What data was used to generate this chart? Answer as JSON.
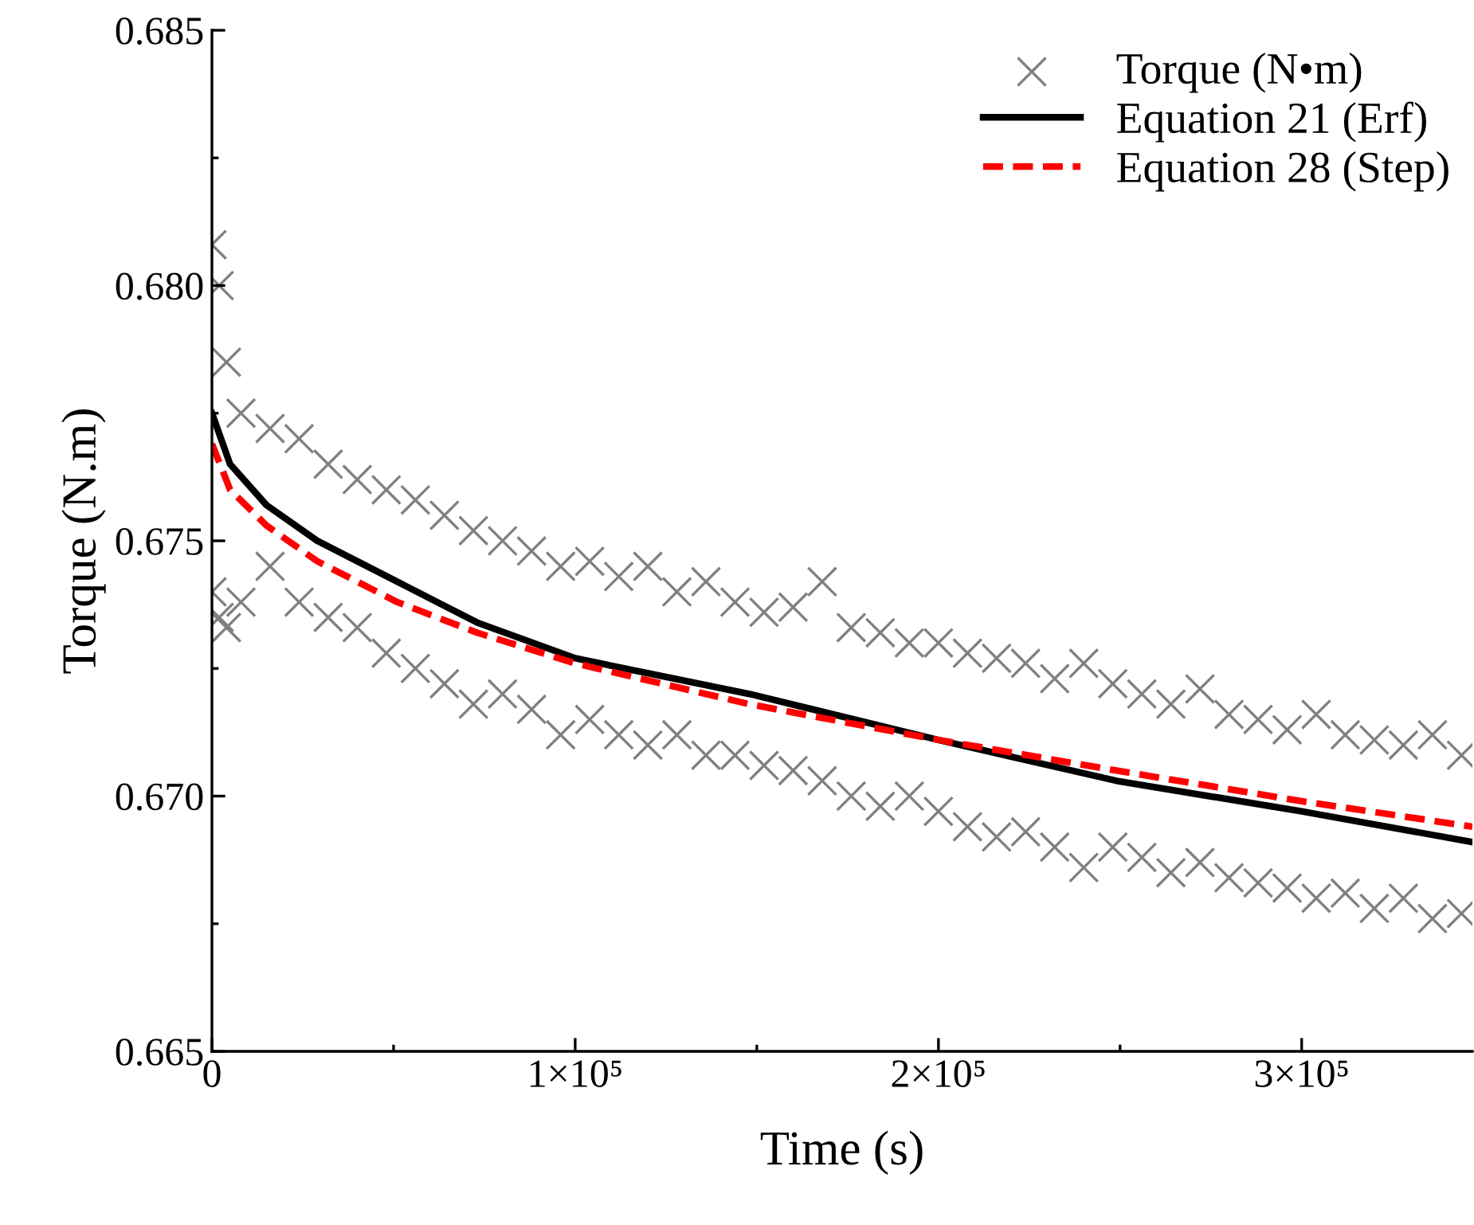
{
  "chart_data": {
    "type": "scatter",
    "xlabel": "Time (s)",
    "ylabel": "Torque (N.m)",
    "xlim": [
      0,
      347000
    ],
    "ylim": [
      0.665,
      0.685
    ],
    "xticks": [
      0,
      {
        "value": 100000,
        "label": "1×10⁵"
      },
      {
        "value": 200000,
        "label": "2×10⁵"
      },
      {
        "value": 300000,
        "label": "3×10⁵"
      }
    ],
    "yticks": [
      0.665,
      {
        "value": 0.67,
        "label": "0.670"
      },
      0.675,
      {
        "value": 0.68,
        "label": "0.680"
      },
      0.685
    ],
    "grid": false,
    "legend": "top right",
    "series": [
      {
        "name": "Torque (N•m)",
        "marker": "cross",
        "color": "#808080",
        "x": [
          0,
          0,
          2000,
          2000,
          4000,
          4000,
          8000,
          8000,
          16000,
          16000,
          24000,
          24000,
          32000,
          32000,
          40000,
          40000,
          48000,
          48000,
          56000,
          56000,
          64000,
          64000,
          72000,
          72000,
          80000,
          80000,
          88000,
          88000,
          96000,
          96000,
          104000,
          104000,
          112000,
          112000,
          120000,
          120000,
          128000,
          128000,
          136000,
          136000,
          144000,
          144000,
          152000,
          152000,
          160000,
          160000,
          168000,
          168000,
          176000,
          176000,
          184000,
          184000,
          192000,
          192000,
          200000,
          200000,
          208000,
          208000,
          216000,
          216000,
          224000,
          224000,
          232000,
          232000,
          240000,
          240000,
          248000,
          248000,
          256000,
          256000,
          264000,
          264000,
          272000,
          272000,
          280000,
          280000,
          288000,
          288000,
          296000,
          296000,
          304000,
          304000,
          312000,
          312000,
          320000,
          320000,
          328000,
          328000,
          336000,
          336000,
          344000,
          344000
        ],
        "values": [
          0.6808,
          0.674,
          0.68,
          0.6735,
          0.6785,
          0.6733,
          0.6775,
          0.6738,
          0.6772,
          0.6745,
          0.677,
          0.6738,
          0.6765,
          0.6735,
          0.6762,
          0.6733,
          0.676,
          0.6728,
          0.6758,
          0.6725,
          0.6755,
          0.6722,
          0.6752,
          0.6718,
          0.675,
          0.672,
          0.6748,
          0.6717,
          0.6745,
          0.6712,
          0.6746,
          0.6715,
          0.6743,
          0.6712,
          0.6745,
          0.671,
          0.674,
          0.6712,
          0.6742,
          0.6708,
          0.6738,
          0.6708,
          0.6736,
          0.6706,
          0.6737,
          0.6705,
          0.6742,
          0.6703,
          0.6733,
          0.67,
          0.6732,
          0.6698,
          0.673,
          0.67,
          0.673,
          0.6697,
          0.6728,
          0.6694,
          0.6727,
          0.6692,
          0.6726,
          0.6693,
          0.6723,
          0.669,
          0.6726,
          0.6686,
          0.6722,
          0.669,
          0.672,
          0.6688,
          0.6718,
          0.6685,
          0.6721,
          0.6687,
          0.6716,
          0.6684,
          0.6715,
          0.6683,
          0.6713,
          0.6682,
          0.6716,
          0.668,
          0.6712,
          0.6681,
          0.6711,
          0.6678,
          0.671,
          0.668,
          0.6712,
          0.6676,
          0.6708,
          0.6677
        ]
      },
      {
        "name": "Equation 21 (Erf)",
        "type": "line",
        "marker": "none",
        "line_style": "solid",
        "color": "#000000",
        "x": [
          0,
          5000,
          15000,
          29000,
          51000,
          73000,
          100000,
          148000,
          200000,
          249000,
          300000,
          347000
        ],
        "values": [
          0.6775,
          0.6765,
          0.6757,
          0.675,
          0.6742,
          0.6734,
          0.6727,
          0.672,
          0.6711,
          0.6703,
          0.6697,
          0.6691
        ]
      },
      {
        "name": "Equation 28 (Step)",
        "type": "line",
        "marker": "none",
        "line_style": "dashed",
        "color": "#ff0000",
        "x": [
          0,
          5000,
          15000,
          29000,
          51000,
          73000,
          100000,
          148000,
          200000,
          249000,
          300000,
          347000
        ],
        "values": [
          0.6769,
          0.676,
          0.6753,
          0.6746,
          0.6738,
          0.6732,
          0.6726,
          0.6718,
          0.6711,
          0.6705,
          0.6699,
          0.6694
        ]
      }
    ]
  }
}
